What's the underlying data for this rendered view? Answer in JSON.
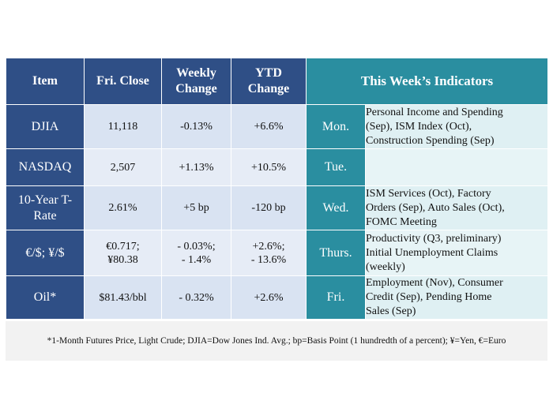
{
  "header": {
    "item": "Item",
    "fri_close": "Fri. Close",
    "weekly_change_1": "Weekly",
    "weekly_change_2": "Change",
    "ytd_change_1": "YTD",
    "ytd_change_2": "Change",
    "indicators": "This Week’s Indicators"
  },
  "rows": [
    {
      "item_1": "DJIA",
      "item_2": "",
      "close_1": "11,118",
      "close_2": "",
      "weekly_1": "-0.13%",
      "weekly_2": "",
      "ytd_1": "+6.6%",
      "ytd_2": "",
      "day": "Mon.",
      "desc_1": "Personal Income and Spending",
      "desc_2": "(Sep), ISM Index (Oct),",
      "desc_3": "Construction Spending (Sep)"
    },
    {
      "item_1": "NASDAQ",
      "item_2": "",
      "close_1": "2,507",
      "close_2": "",
      "weekly_1": "+1.13%",
      "weekly_2": "",
      "ytd_1": "+10.5%",
      "ytd_2": "",
      "day": "Tue.",
      "desc_1": "",
      "desc_2": "",
      "desc_3": ""
    },
    {
      "item_1": "10-Year T-",
      "item_2": "Rate",
      "close_1": "2.61%",
      "close_2": "",
      "weekly_1": "+5 bp",
      "weekly_2": "",
      "ytd_1": "-120 bp",
      "ytd_2": "",
      "day": "Wed.",
      "desc_1": "ISM Services (Oct), Factory",
      "desc_2": "Orders (Sep), Auto Sales (Oct),",
      "desc_3": "FOMC Meeting"
    },
    {
      "item_1": "€/$; ¥/$",
      "item_2": "",
      "close_1": "€0.717;",
      "close_2": "¥80.38",
      "weekly_1": "- 0.03%;",
      "weekly_2": "- 1.4%",
      "ytd_1": "+2.6%;",
      "ytd_2": "- 13.6%",
      "day": "Thurs.",
      "desc_1": "Productivity (Q3, preliminary)",
      "desc_2": "Initial Unemployment Claims",
      "desc_3": "(weekly)"
    },
    {
      "item_1": "Oil*",
      "item_2": "",
      "close_1": "$81.43/bbl",
      "close_2": "",
      "weekly_1": "- 0.32%",
      "weekly_2": "",
      "ytd_1": "+2.6%",
      "ytd_2": "",
      "day": "Fri.",
      "desc_1": "Employment (Nov), Consumer",
      "desc_2": "Credit (Sep), Pending Home",
      "desc_3": "Sales (Sep)"
    }
  ],
  "footnote": "*1-Month Futures Price, Light Crude; DJIA=Dow Jones Ind. Avg.; bp=Basis Point (1 hundredth of a percent); ¥=Yen, €=Euro",
  "colors": {
    "navy": "#2f4f86",
    "teal": "#2a8ea0",
    "light_blue": "#d9e3f2",
    "light_teal": "#dff0f3",
    "footnote_bg": "#f2f2f2"
  }
}
